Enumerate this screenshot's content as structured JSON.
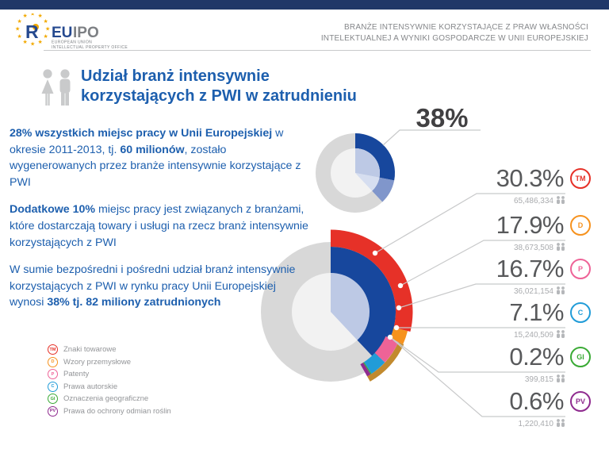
{
  "header": {
    "logo": {
      "eu": "EU",
      "ipo": "IPO",
      "sub_line1": "EUROPEAN UNION",
      "sub_line2": "INTELLECTUAL PROPERTY OFFICE"
    },
    "tagline_line1": "BRANŻE INTENSYWNIE KORZYSTAJĄCE Z PRAW WŁASNOŚCI",
    "tagline_line2": "INTELEKTUALNEJ A WYNIKI GOSPODARCZE W UNII EUROPEJSKIEJ"
  },
  "title": {
    "line1": "Udział branż intensywnie",
    "line2": "korzystających z PWI w zatrudnieniu"
  },
  "paragraphs": [
    {
      "segments": [
        {
          "text": "28% wszystkich miejsc pracy w Unii Europejskiej",
          "bold": true
        },
        {
          "text": " w okresie 2011-2013, tj. ",
          "bold": false
        },
        {
          "text": "60 milionów",
          "bold": true
        },
        {
          "text": ", zostało wygenerowanych przez branże intensywnie korzystające z PWI",
          "bold": false
        }
      ]
    },
    {
      "segments": [
        {
          "text": "Dodatkowe 10%",
          "bold": true
        },
        {
          "text": " miejsc pracy jest związanych z branżami, które dostarczają towary i usługi na rzecz branż intensywnie korzystających z PWI",
          "bold": false
        }
      ]
    },
    {
      "segments": [
        {
          "text": "W sumie bezpośredni i pośredni udział branż intensywnie korzystających z PWI w rynku pracy Unii Europejskiej wynosi ",
          "bold": false
        },
        {
          "text": "38% tj. 82 miliony zatrudnionych",
          "bold": true
        }
      ]
    }
  ],
  "chart_data": {
    "type": "donut",
    "title": "Udział branż intensywnie korzystających z PWI w zatrudnieniu",
    "total_label": "38%",
    "total_share_pct": 38,
    "direct_share_pct": 28,
    "indirect_share_pct": 10,
    "legend_position": "bottom-left",
    "rights": [
      {
        "code": "TM",
        "label": "Znaki towarowe",
        "share_pct": 30.3,
        "share_label": "30.3%",
        "jobs": "65,486,334",
        "color": "#e63128"
      },
      {
        "code": "D",
        "label": "Wzory przemysłowe",
        "share_pct": 17.9,
        "share_label": "17.9%",
        "jobs": "38,673,508",
        "color": "#f6921e"
      },
      {
        "code": "P",
        "label": "Patenty",
        "share_pct": 16.7,
        "share_label": "16.7%",
        "jobs": "36,021,154",
        "color": "#ee6397"
      },
      {
        "code": "C",
        "label": "Prawa autorskie",
        "share_pct": 7.1,
        "share_label": "7.1%",
        "jobs": "15,240,509",
        "color": "#219cd8"
      },
      {
        "code": "GI",
        "label": "Oznaczenia geograficzne",
        "share_pct": 0.2,
        "share_label": "0.2%",
        "jobs": "399,815",
        "color": "#3aaa35"
      },
      {
        "code": "PV",
        "label": "Prawa do ochrony odmian roślin",
        "share_pct": 0.6,
        "share_label": "0.6%",
        "jobs": "1,220,410",
        "color": "#8f2b8f"
      }
    ]
  },
  "colors": {
    "topbar": "#203768",
    "accent_text": "#1d5fae",
    "logo_blue": "#25498f",
    "logo_gray": "#7d8084",
    "star_gold": "#f2a900",
    "total_dark": "#414042",
    "percent_gray": "#58595b",
    "count_gray": "#a9abae",
    "leader_gray": "#c8c9ca",
    "ring_gray": "#d8d8d8",
    "inner_gray": "#f2f2f2",
    "wedge_navy": "#17479d",
    "wedge_light": "#8096cb",
    "wedge_pale": "#bdc9e5",
    "wedge_pale2": "#d6def0",
    "gold_overlay": "#c28a2e",
    "legend_text": "#939598",
    "icon_gray": "#c9cacb"
  }
}
